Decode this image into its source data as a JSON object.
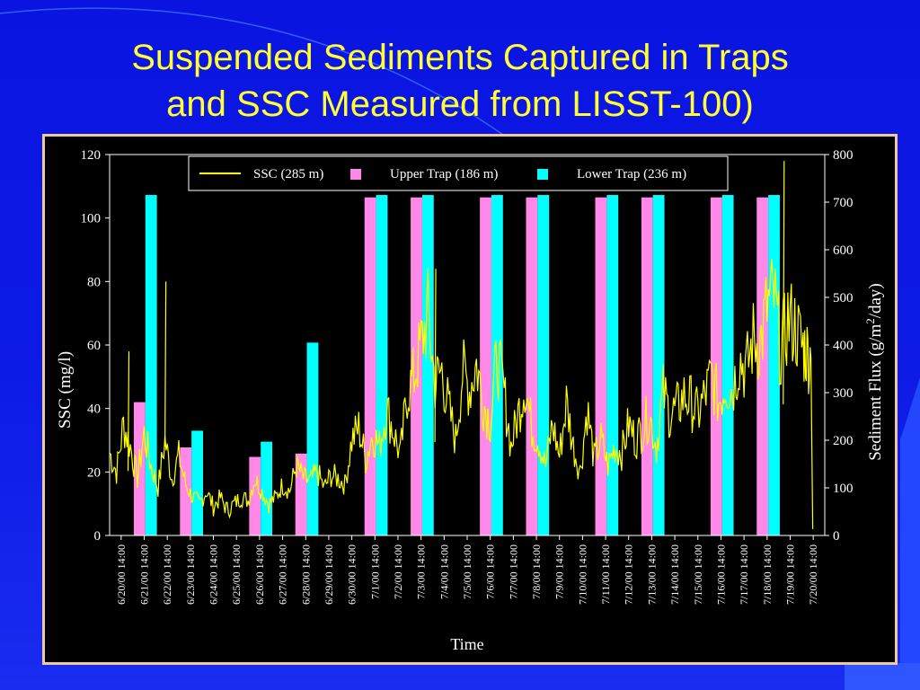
{
  "slide": {
    "title_line1": "Suspended Sediments Captured in Traps",
    "title_line2": "and SSC Measured from LISST-100)"
  },
  "colors": {
    "background": "#0a14e0",
    "title": "#ffff33",
    "ssc_line": "#ffff00",
    "upper_trap": "#ff88e8",
    "lower_trap": "#00ffff",
    "frame": "#f2c89a"
  },
  "chart_data": {
    "type": "bar",
    "xlabel": "Time",
    "ylabel_left": "SSC (mg/l)",
    "ylabel_right_prefix": "Sediment Flux (g/m",
    "ylabel_right_sup": "2",
    "ylabel_right_suffix": "/day)",
    "ylim_left": [
      0,
      120
    ],
    "ylim_right": [
      0,
      800
    ],
    "yticks_left": [
      "0",
      "20",
      "40",
      "60",
      "80",
      "100",
      "120"
    ],
    "yticks_right": [
      "0",
      "100",
      "200",
      "300",
      "400",
      "500",
      "600",
      "700",
      "800"
    ],
    "grid": false,
    "legend_position": "top",
    "legend": [
      {
        "label": "SSC (285 m)",
        "swatch": "line",
        "color": "#ffff00"
      },
      {
        "label": "Upper Trap (186 m)",
        "swatch": "box",
        "color": "#ff88e8"
      },
      {
        "label": "Lower Trap (236 m)",
        "swatch": "box",
        "color": "#00ffff"
      }
    ],
    "categories": [
      "6/20/00 14:00",
      "6/21/00 14:00",
      "6/22/00 14:00",
      "6/23/00 14:00",
      "6/24/00 14:00",
      "6/25/00 14:00",
      "6/26/00 14:00",
      "6/27/00 14:00",
      "6/28/00 14:00",
      "6/29/00 14:00",
      "6/30/00 14:00",
      "7/1/00 14:00",
      "7/2/00 14:00",
      "7/3/00 14:00",
      "7/4/00 14:00",
      "7/5/00 14:00",
      "7/6/00 14:00",
      "7/7/00 14:00",
      "7/8/00 14:00",
      "7/9/00 14:00",
      "7/10/00 14:00",
      "7/11/00 14:00",
      "7/12/00 14:00",
      "7/13/00 14:00",
      "7/14/00 14:00",
      "7/15/00 14:00",
      "7/16/00 14:00",
      "7/17/00 14:00",
      "7/18/00 14:00",
      "7/19/00 14:00",
      "7/20/00 14:00"
    ],
    "bars": [
      {
        "series": "Upper Trap (186 m)",
        "date": "6/21/00",
        "value": 280
      },
      {
        "series": "Lower Trap (236 m)",
        "date": "6/21/00",
        "value": 715
      },
      {
        "series": "Upper Trap (186 m)",
        "date": "6/23/00",
        "value": 185
      },
      {
        "series": "Lower Trap (236 m)",
        "date": "6/23/00",
        "value": 220
      },
      {
        "series": "Upper Trap (186 m)",
        "date": "6/26/00",
        "value": 165
      },
      {
        "series": "Lower Trap (236 m)",
        "date": "6/26/00",
        "value": 197
      },
      {
        "series": "Upper Trap (186 m)",
        "date": "6/28/00",
        "value": 172
      },
      {
        "series": "Lower Trap (236 m)",
        "date": "6/28/00",
        "value": 405
      },
      {
        "series": "Upper Trap (186 m)",
        "date": "7/1/00",
        "value": 710
      },
      {
        "series": "Lower Trap (236 m)",
        "date": "7/1/00",
        "value": 715
      },
      {
        "series": "Upper Trap (186 m)",
        "date": "7/3/00",
        "value": 710
      },
      {
        "series": "Lower Trap (236 m)",
        "date": "7/3/00",
        "value": 715
      },
      {
        "series": "Upper Trap (186 m)",
        "date": "7/6/00",
        "value": 710
      },
      {
        "series": "Lower Trap (236 m)",
        "date": "7/6/00",
        "value": 715
      },
      {
        "series": "Upper Trap (186 m)",
        "date": "7/8/00",
        "value": 710
      },
      {
        "series": "Lower Trap (236 m)",
        "date": "7/8/00",
        "value": 715
      },
      {
        "series": "Upper Trap (186 m)",
        "date": "7/11/00",
        "value": 710
      },
      {
        "series": "Lower Trap (236 m)",
        "date": "7/11/00",
        "value": 715
      },
      {
        "series": "Upper Trap (186 m)",
        "date": "7/13/00",
        "value": 710
      },
      {
        "series": "Lower Trap (236 m)",
        "date": "7/13/00",
        "value": 715
      },
      {
        "series": "Upper Trap (186 m)",
        "date": "7/16/00",
        "value": 710
      },
      {
        "series": "Lower Trap (236 m)",
        "date": "7/16/00",
        "value": 715
      },
      {
        "series": "Upper Trap (186 m)",
        "date": "7/18/00",
        "value": 710
      },
      {
        "series": "Lower Trap (236 m)",
        "date": "7/18/00",
        "value": 715
      }
    ],
    "ssc_line": {
      "name": "SSC (285 m)",
      "axis": "left",
      "day_index": [
        0,
        0.3,
        0.6,
        0.9,
        1.2,
        1.5,
        1.8,
        2.1,
        2.4,
        2.7,
        3,
        3.3,
        3.6,
        3.9,
        4.2,
        4.5,
        4.8,
        5.1,
        5.4,
        5.7,
        6,
        6.3,
        6.6,
        6.9,
        7.2,
        7.5,
        7.8,
        8.1,
        8.4,
        8.7,
        9,
        9.3,
        9.6,
        9.9,
        10.2,
        10.5,
        10.8,
        11.1,
        11.4,
        11.7,
        12,
        12.3,
        12.6,
        12.9,
        13.2,
        13.5,
        13.8,
        14.1,
        14.4,
        14.7,
        15,
        15.3,
        15.6,
        15.9,
        16.2,
        16.5,
        16.8,
        17.1,
        17.4,
        17.7,
        18,
        18.3,
        18.6,
        18.9,
        19.2,
        19.5,
        19.8,
        20.1,
        20.4,
        20.7,
        21,
        21.3,
        21.6,
        21.9,
        22.2,
        22.5,
        22.8,
        23.1,
        23.4,
        23.7,
        24,
        24.3,
        24.6,
        24.9,
        25.2,
        25.5,
        25.8,
        26.1,
        26.4,
        26.7,
        27,
        27.3,
        27.6,
        27.9,
        28.2,
        28.5,
        28.8,
        29.1,
        29.4,
        29.7,
        30,
        30.2,
        30.4
      ],
      "values": [
        26,
        20,
        35,
        28,
        18,
        32,
        22,
        15,
        30,
        18,
        25,
        16,
        12,
        10,
        14,
        9,
        12,
        8,
        10,
        12,
        11,
        18,
        14,
        10,
        12,
        16,
        14,
        22,
        18,
        17,
        20,
        15,
        19,
        18,
        16,
        30,
        34,
        24,
        32,
        28,
        40,
        33,
        25,
        45,
        50,
        60,
        70,
        48,
        52,
        40,
        30,
        52,
        46,
        54,
        42,
        36,
        56,
        45,
        28,
        38,
        48,
        34,
        30,
        22,
        35,
        25,
        42,
        28,
        20,
        40,
        24,
        30,
        22,
        28,
        26,
        35,
        30,
        34,
        38,
        28,
        45,
        38,
        40,
        44,
        42,
        38,
        44,
        50,
        42,
        48,
        46,
        56,
        52,
        62,
        60,
        72,
        75,
        58,
        68,
        66,
        60,
        58,
        56
      ]
    },
    "ssc_spikes": [
      {
        "day_index": 0.8,
        "value": 58
      },
      {
        "day_index": 2.4,
        "value": 80
      },
      {
        "day_index": 14.1,
        "value": 84
      },
      {
        "day_index": 29.2,
        "value": 118
      }
    ]
  }
}
